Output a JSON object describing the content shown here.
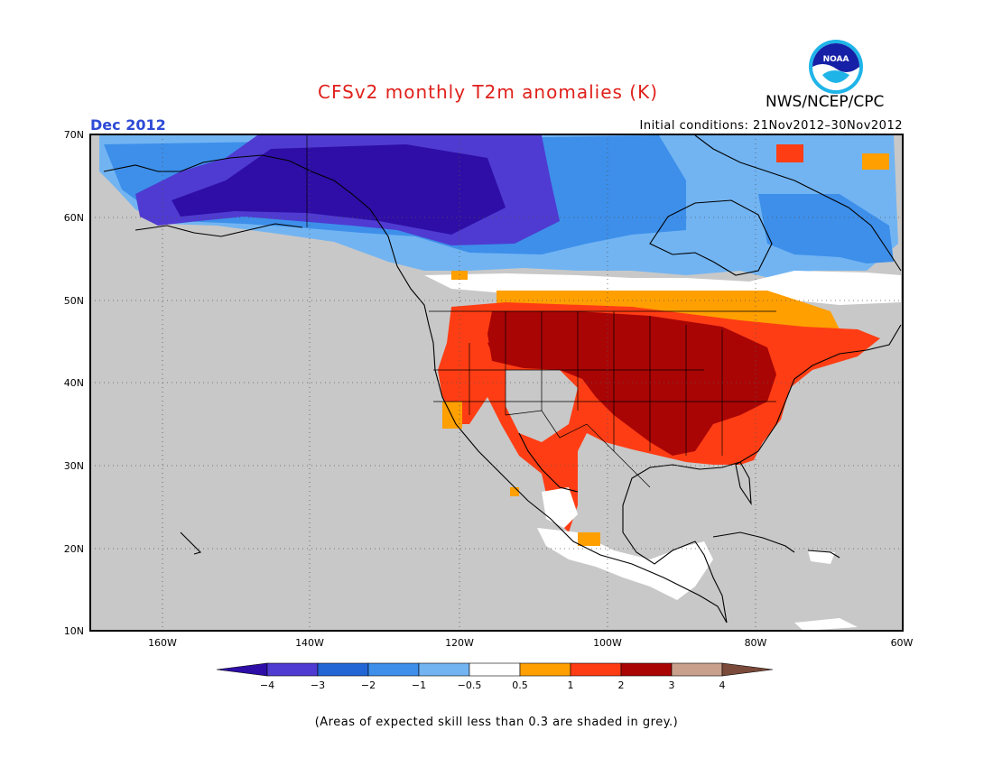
{
  "header": {
    "title": "CFSv2 monthly T2m anomalies (K)",
    "period": "Dec 2012",
    "initial_conditions": "Initial conditions: 21Nov2012–30Nov2012",
    "agency": "NWS/NCEP/CPC",
    "logo_text": "NOAA"
  },
  "map": {
    "lon_range": [
      -172,
      -60
    ],
    "lat_range": [
      10,
      70
    ],
    "lat_labels": [
      "70N",
      "60N",
      "50N",
      "40N",
      "30N",
      "20N",
      "10N"
    ],
    "lon_labels": [
      "160W",
      "140W",
      "120W",
      "100W",
      "80W",
      "60W"
    ],
    "grey_meaning": "skill < 0.3"
  },
  "colorbar": {
    "tick_labels": [
      "−4",
      "−3",
      "−2",
      "−1",
      "−0.5",
      "0.5",
      "1",
      "2",
      "3",
      "4"
    ],
    "colors": [
      "#2e0ea6",
      "#4f3bd1",
      "#2266d6",
      "#3d8fea",
      "#72b4f2",
      "#ffffff",
      "#ff9f00",
      "#ff3d14",
      "#aa0505",
      "#c8a08c",
      "#7a4a3a"
    ]
  },
  "footnote": "(Areas of expected skill less than 0.3 are shaded in grey.)"
}
